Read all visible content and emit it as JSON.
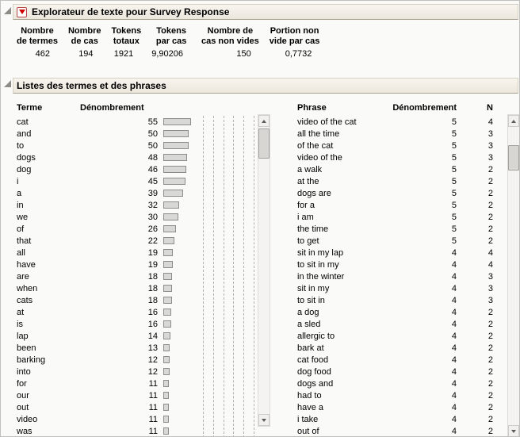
{
  "header": {
    "title": "Explorateur de texte pour Survey Response"
  },
  "sections": {
    "lists_title": "Listes des termes et des phrases"
  },
  "summary": {
    "columns": [
      {
        "label_lines": [
          "Nombre",
          "de termes"
        ],
        "value": "462"
      },
      {
        "label_lines": [
          "Nombre",
          "de cas"
        ],
        "value": "194"
      },
      {
        "label_lines": [
          "Tokens",
          "totaux"
        ],
        "value": "1921"
      },
      {
        "label_lines": [
          "Tokens",
          "par cas"
        ],
        "value": "9,90206"
      },
      {
        "label_lines": [
          "Nombre de",
          "cas non vides"
        ],
        "value": "150"
      },
      {
        "label_lines": [
          "Portion non",
          "vide par cas"
        ],
        "value": "0,7732"
      }
    ]
  },
  "terms": {
    "header_term": "Terme",
    "header_count": "Dénombrement",
    "bar_axis_max": 185,
    "rows": [
      {
        "term": "cat",
        "count": 55
      },
      {
        "term": "and",
        "count": 50
      },
      {
        "term": "to",
        "count": 50
      },
      {
        "term": "dogs",
        "count": 48
      },
      {
        "term": "dog",
        "count": 46
      },
      {
        "term": "i",
        "count": 45
      },
      {
        "term": "a",
        "count": 39
      },
      {
        "term": "in",
        "count": 32
      },
      {
        "term": "we",
        "count": 30
      },
      {
        "term": "of",
        "count": 26
      },
      {
        "term": "that",
        "count": 22
      },
      {
        "term": "all",
        "count": 19
      },
      {
        "term": "have",
        "count": 19
      },
      {
        "term": "are",
        "count": 18
      },
      {
        "term": "when",
        "count": 18
      },
      {
        "term": "cats",
        "count": 18
      },
      {
        "term": "at",
        "count": 16
      },
      {
        "term": "is",
        "count": 16
      },
      {
        "term": "lap",
        "count": 14
      },
      {
        "term": "been",
        "count": 13
      },
      {
        "term": "barking",
        "count": 12
      },
      {
        "term": "into",
        "count": 12
      },
      {
        "term": "for",
        "count": 11
      },
      {
        "term": "our",
        "count": 11
      },
      {
        "term": "out",
        "count": 11
      },
      {
        "term": "video",
        "count": 11
      },
      {
        "term": "was",
        "count": 11
      }
    ]
  },
  "phrases": {
    "header_phrase": "Phrase",
    "header_count": "Dénombrement",
    "header_n": "N",
    "rows": [
      {
        "phrase": "video of the cat",
        "count": 5,
        "n": 4
      },
      {
        "phrase": "all the time",
        "count": 5,
        "n": 3
      },
      {
        "phrase": "of the cat",
        "count": 5,
        "n": 3
      },
      {
        "phrase": "video of the",
        "count": 5,
        "n": 3
      },
      {
        "phrase": "a walk",
        "count": 5,
        "n": 2
      },
      {
        "phrase": "at the",
        "count": 5,
        "n": 2
      },
      {
        "phrase": "dogs are",
        "count": 5,
        "n": 2
      },
      {
        "phrase": "for a",
        "count": 5,
        "n": 2
      },
      {
        "phrase": "i am",
        "count": 5,
        "n": 2
      },
      {
        "phrase": "the time",
        "count": 5,
        "n": 2
      },
      {
        "phrase": "to get",
        "count": 5,
        "n": 2
      },
      {
        "phrase": "sit in my lap",
        "count": 4,
        "n": 4
      },
      {
        "phrase": "to sit in my",
        "count": 4,
        "n": 4
      },
      {
        "phrase": "in the winter",
        "count": 4,
        "n": 3
      },
      {
        "phrase": "sit in my",
        "count": 4,
        "n": 3
      },
      {
        "phrase": "to sit in",
        "count": 4,
        "n": 3
      },
      {
        "phrase": "a dog",
        "count": 4,
        "n": 2
      },
      {
        "phrase": "a sled",
        "count": 4,
        "n": 2
      },
      {
        "phrase": "allergic to",
        "count": 4,
        "n": 2
      },
      {
        "phrase": "bark at",
        "count": 4,
        "n": 2
      },
      {
        "phrase": "cat food",
        "count": 4,
        "n": 2
      },
      {
        "phrase": "dog food",
        "count": 4,
        "n": 2
      },
      {
        "phrase": "dogs and",
        "count": 4,
        "n": 2
      },
      {
        "phrase": "had to",
        "count": 4,
        "n": 2
      },
      {
        "phrase": "have a",
        "count": 4,
        "n": 2
      },
      {
        "phrase": "i take",
        "count": 4,
        "n": 2
      },
      {
        "phrase": "out of",
        "count": 4,
        "n": 2
      }
    ]
  }
}
